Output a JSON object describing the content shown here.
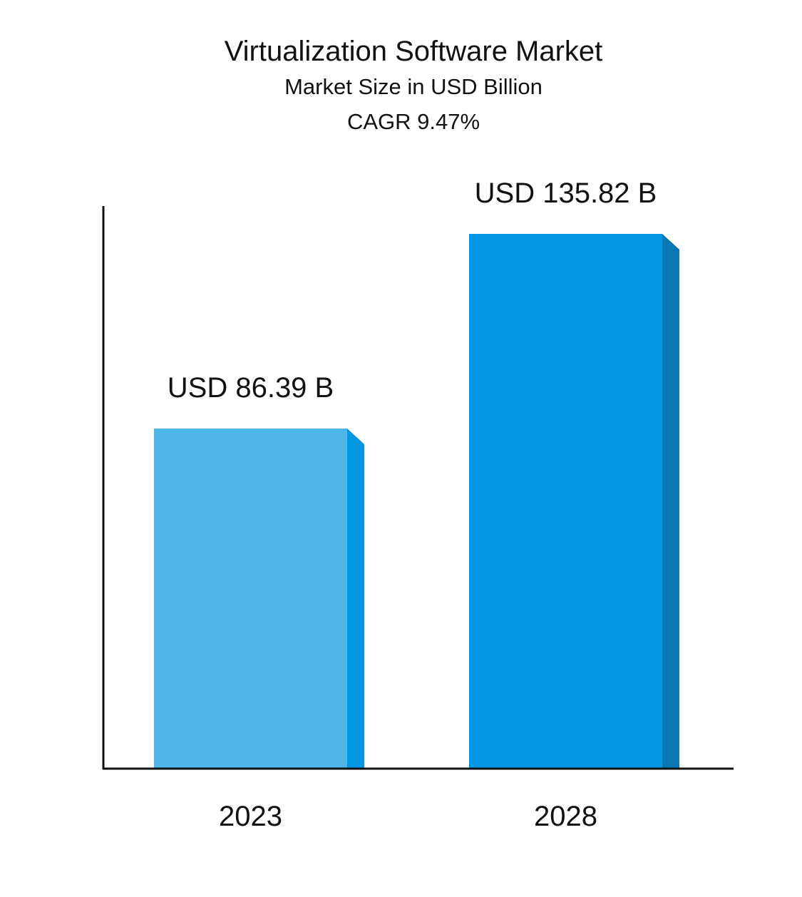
{
  "chart_data": {
    "type": "bar",
    "title": "Virtualization Software Market",
    "subtitle": "Market Size in USD Billion",
    "annotation": "CAGR 9.47%",
    "categories": [
      "2023",
      "2028"
    ],
    "values": [
      86.39,
      135.82
    ],
    "value_labels": [
      "USD 86.39 B",
      "USD 135.82 B"
    ],
    "colors": {
      "bar_2023_front": "#4fb4e8",
      "bar_2023_side": "#0197e3",
      "bar_2028_front": "#0197e3",
      "bar_2028_side": "#0878b4",
      "axis": "#111111"
    },
    "ylim": [
      0,
      150
    ],
    "grid": false,
    "xlabel": "",
    "ylabel": ""
  }
}
